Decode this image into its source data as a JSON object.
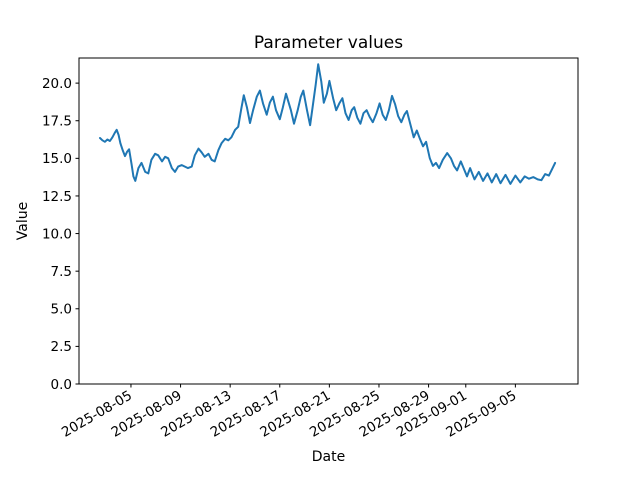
{
  "chart_data": {
    "type": "line",
    "title": "Parameter values",
    "xlabel": "Date",
    "ylabel": "Value",
    "grid": false,
    "legend": false,
    "x_unit": "days since 2025-08-05",
    "xlim": [
      -4.19,
      36.05
    ],
    "ylim": [
      0,
      21.67
    ],
    "x_ticks": [
      {
        "pos": 0,
        "label": "2025-08-05"
      },
      {
        "pos": 4,
        "label": "2025-08-09"
      },
      {
        "pos": 8,
        "label": "2025-08-13"
      },
      {
        "pos": 12,
        "label": "2025-08-17"
      },
      {
        "pos": 16,
        "label": "2025-08-21"
      },
      {
        "pos": 20,
        "label": "2025-08-25"
      },
      {
        "pos": 24,
        "label": "2025-08-29"
      },
      {
        "pos": 27,
        "label": "2025-09-01"
      },
      {
        "pos": 31,
        "label": "2025-09-05"
      }
    ],
    "y_ticks": [
      {
        "pos": 0,
        "label": "0.0"
      },
      {
        "pos": 2.5,
        "label": "2.5"
      },
      {
        "pos": 5,
        "label": "5.0"
      },
      {
        "pos": 7.5,
        "label": "7.5"
      },
      {
        "pos": 10,
        "label": "10.0"
      },
      {
        "pos": 12.5,
        "label": "12.5"
      },
      {
        "pos": 15,
        "label": "15.0"
      },
      {
        "pos": 17.5,
        "label": "17.5"
      },
      {
        "pos": 20,
        "label": "20.0"
      }
    ],
    "series": [
      {
        "name": "parameter-values",
        "color": "#1f77b4",
        "line_width": 2,
        "points": [
          [
            -2.5,
            16.35
          ],
          [
            -2.3,
            16.2
          ],
          [
            -2.1,
            16.1
          ],
          [
            -1.9,
            16.25
          ],
          [
            -1.7,
            16.15
          ],
          [
            -1.5,
            16.4
          ],
          [
            -1.3,
            16.7
          ],
          [
            -1.15,
            16.9
          ],
          [
            -1.0,
            16.55
          ],
          [
            -0.85,
            16.0
          ],
          [
            -0.65,
            15.5
          ],
          [
            -0.48,
            15.15
          ],
          [
            -0.3,
            15.45
          ],
          [
            -0.15,
            15.6
          ],
          [
            0.05,
            14.6
          ],
          [
            0.2,
            13.8
          ],
          [
            0.35,
            13.5
          ],
          [
            0.6,
            14.35
          ],
          [
            0.85,
            14.7
          ],
          [
            1.15,
            14.1
          ],
          [
            1.4,
            14.0
          ],
          [
            1.65,
            14.9
          ],
          [
            1.95,
            15.3
          ],
          [
            2.2,
            15.2
          ],
          [
            2.5,
            14.8
          ],
          [
            2.75,
            15.1
          ],
          [
            3.0,
            15.0
          ],
          [
            3.3,
            14.35
          ],
          [
            3.55,
            14.1
          ],
          [
            3.8,
            14.45
          ],
          [
            4.1,
            14.55
          ],
          [
            4.35,
            14.45
          ],
          [
            4.6,
            14.35
          ],
          [
            4.9,
            14.45
          ],
          [
            5.15,
            15.2
          ],
          [
            5.45,
            15.65
          ],
          [
            5.7,
            15.4
          ],
          [
            5.95,
            15.1
          ],
          [
            6.25,
            15.3
          ],
          [
            6.5,
            14.9
          ],
          [
            6.75,
            14.8
          ],
          [
            7.05,
            15.55
          ],
          [
            7.3,
            16.0
          ],
          [
            7.6,
            16.3
          ],
          [
            7.85,
            16.2
          ],
          [
            8.1,
            16.4
          ],
          [
            8.4,
            16.9
          ],
          [
            8.65,
            17.1
          ],
          [
            8.9,
            18.3
          ],
          [
            9.1,
            19.2
          ],
          [
            9.35,
            18.4
          ],
          [
            9.6,
            17.35
          ],
          [
            9.85,
            18.2
          ],
          [
            10.15,
            19.1
          ],
          [
            10.4,
            19.5
          ],
          [
            10.65,
            18.65
          ],
          [
            10.95,
            17.9
          ],
          [
            11.2,
            18.7
          ],
          [
            11.45,
            19.1
          ],
          [
            11.7,
            18.2
          ],
          [
            12.0,
            17.6
          ],
          [
            12.25,
            18.4
          ],
          [
            12.5,
            19.3
          ],
          [
            12.9,
            18.2
          ],
          [
            13.15,
            17.3
          ],
          [
            13.45,
            18.2
          ],
          [
            13.7,
            19.1
          ],
          [
            13.9,
            19.5
          ],
          [
            14.2,
            18.2
          ],
          [
            14.45,
            17.2
          ],
          [
            14.65,
            18.4
          ],
          [
            14.9,
            19.9
          ],
          [
            15.1,
            21.25
          ],
          [
            15.35,
            20.1
          ],
          [
            15.55,
            18.7
          ],
          [
            15.8,
            19.3
          ],
          [
            16.0,
            20.15
          ],
          [
            16.3,
            19.0
          ],
          [
            16.55,
            18.2
          ],
          [
            16.8,
            18.65
          ],
          [
            17.05,
            19.0
          ],
          [
            17.3,
            18.0
          ],
          [
            17.55,
            17.55
          ],
          [
            17.8,
            18.2
          ],
          [
            18.0,
            18.4
          ],
          [
            18.25,
            17.7
          ],
          [
            18.5,
            17.3
          ],
          [
            18.75,
            18.0
          ],
          [
            19.0,
            18.2
          ],
          [
            19.25,
            17.75
          ],
          [
            19.5,
            17.4
          ],
          [
            19.8,
            18.0
          ],
          [
            20.05,
            18.65
          ],
          [
            20.3,
            17.9
          ],
          [
            20.55,
            17.55
          ],
          [
            20.8,
            18.2
          ],
          [
            21.05,
            19.15
          ],
          [
            21.3,
            18.6
          ],
          [
            21.55,
            17.8
          ],
          [
            21.8,
            17.4
          ],
          [
            22.05,
            17.9
          ],
          [
            22.25,
            18.15
          ],
          [
            22.55,
            17.2
          ],
          [
            22.8,
            16.4
          ],
          [
            23.05,
            16.85
          ],
          [
            23.3,
            16.3
          ],
          [
            23.55,
            15.8
          ],
          [
            23.8,
            16.1
          ],
          [
            24.1,
            15.0
          ],
          [
            24.35,
            14.5
          ],
          [
            24.6,
            14.7
          ],
          [
            24.85,
            14.35
          ],
          [
            25.15,
            14.9
          ],
          [
            25.5,
            15.35
          ],
          [
            25.8,
            15.0
          ],
          [
            26.05,
            14.5
          ],
          [
            26.3,
            14.2
          ],
          [
            26.6,
            14.8
          ],
          [
            26.85,
            14.3
          ],
          [
            27.1,
            13.8
          ],
          [
            27.35,
            14.35
          ],
          [
            27.7,
            13.6
          ],
          [
            28.05,
            14.1
          ],
          [
            28.4,
            13.5
          ],
          [
            28.75,
            14.0
          ],
          [
            29.1,
            13.4
          ],
          [
            29.45,
            13.95
          ],
          [
            29.8,
            13.35
          ],
          [
            30.2,
            13.9
          ],
          [
            30.6,
            13.3
          ],
          [
            31.0,
            13.85
          ],
          [
            31.4,
            13.4
          ],
          [
            31.75,
            13.8
          ],
          [
            32.1,
            13.65
          ],
          [
            32.45,
            13.75
          ],
          [
            32.8,
            13.6
          ],
          [
            33.1,
            13.55
          ],
          [
            33.4,
            13.95
          ],
          [
            33.7,
            13.85
          ],
          [
            34.0,
            14.35
          ],
          [
            34.2,
            14.7
          ]
        ]
      }
    ]
  }
}
